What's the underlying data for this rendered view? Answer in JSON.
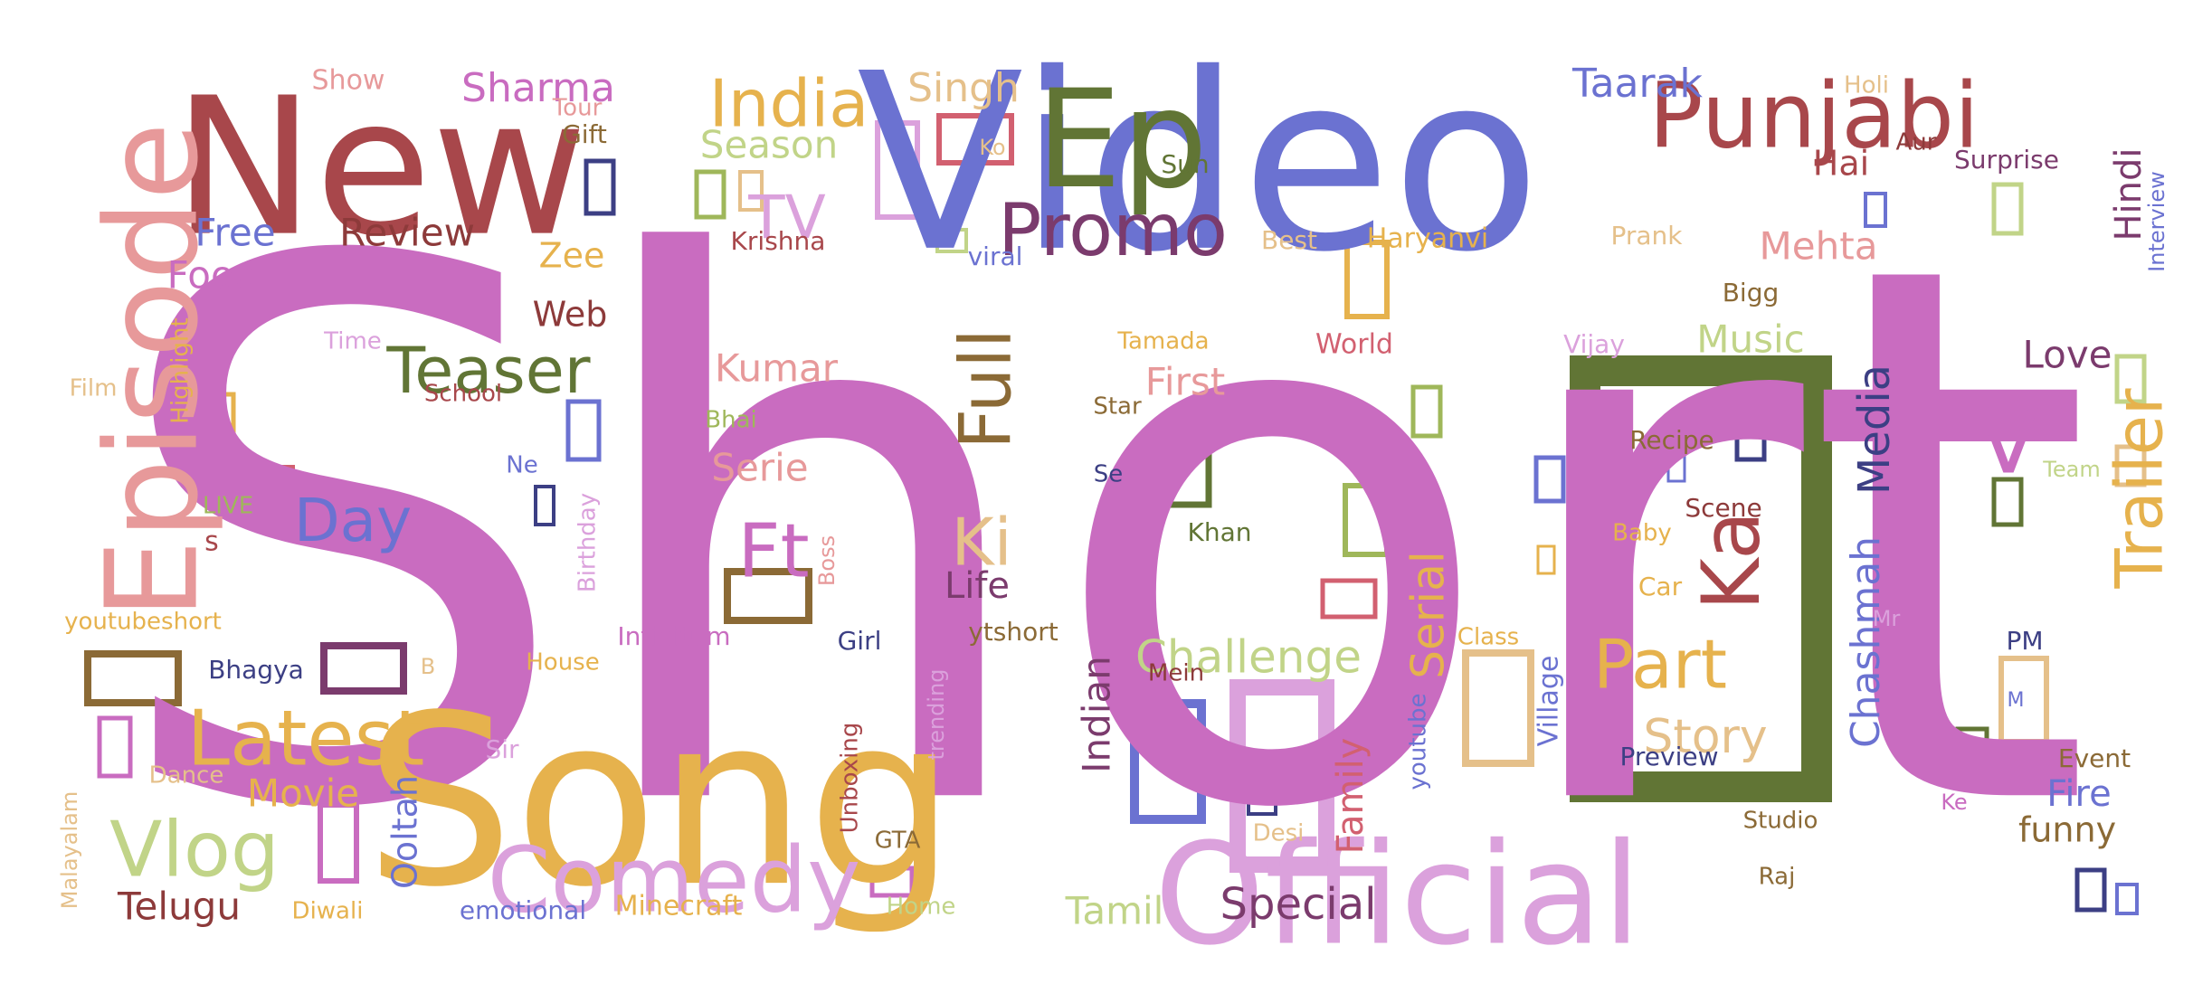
{
  "colors": {
    "orchid": "#c96cc0",
    "steel": "#6b72d1",
    "gold": "#e6b24d",
    "brick": "#a8474b",
    "olive": "#617535",
    "pink": "#e7999a",
    "lilac": "#dba1dc",
    "sage": "#c1d488",
    "plum": "#7b3b6d",
    "brown": "#8b6a36",
    "navy": "#3c3f84",
    "sand": "#e5c08a",
    "rose": "#d26070",
    "green": "#9fb75a",
    "dkred": "#8d3a3a"
  },
  "words": [
    {
      "text": "Short",
      "color": "orchid"
    },
    {
      "text": "Video",
      "color": "steel"
    },
    {
      "text": "Song",
      "color": "gold"
    },
    {
      "text": "New",
      "color": "brick"
    },
    {
      "text": "Official",
      "color": "lilac"
    },
    {
      "text": "Episode",
      "color": "pink"
    },
    {
      "text": "Ep",
      "color": "olive"
    },
    {
      "text": "Punjabi",
      "color": "brick"
    },
    {
      "text": "Comedy",
      "color": "lilac"
    },
    {
      "text": "Promo",
      "color": "plum"
    },
    {
      "text": "Latest",
      "color": "gold"
    },
    {
      "text": "Vlog",
      "color": "sage"
    },
    {
      "text": "India",
      "color": "gold"
    },
    {
      "text": "Teaser",
      "color": "olive"
    },
    {
      "text": "Part",
      "color": "gold"
    },
    {
      "text": "Ka",
      "color": "brick"
    },
    {
      "text": "Trailer",
      "color": "gold"
    },
    {
      "text": "Ft",
      "color": "orchid"
    },
    {
      "text": "Full",
      "color": "brown"
    },
    {
      "text": "Day",
      "color": "steel"
    },
    {
      "text": "V",
      "color": "orchid"
    },
    {
      "text": "Ki",
      "color": "sand"
    },
    {
      "text": "TV",
      "color": "lilac"
    },
    {
      "text": "Story",
      "color": "sand"
    },
    {
      "text": "Challenge",
      "color": "sage"
    },
    {
      "text": "Serial",
      "color": "gold"
    },
    {
      "text": "Media",
      "color": "navy"
    },
    {
      "text": "Special",
      "color": "plum"
    },
    {
      "text": "Chashmah",
      "color": "steel"
    },
    {
      "text": "Sharma",
      "color": "orchid"
    },
    {
      "text": "Singh",
      "color": "sand"
    },
    {
      "text": "Taarak",
      "color": "steel"
    },
    {
      "text": "Season",
      "color": "sage"
    },
    {
      "text": "Review",
      "color": "dkred"
    },
    {
      "text": "Free",
      "color": "steel"
    },
    {
      "text": "Food",
      "color": "orchid"
    },
    {
      "text": "Hindi",
      "color": "plum"
    },
    {
      "text": "Mehta",
      "color": "pink"
    },
    {
      "text": "Hai",
      "color": "brick"
    },
    {
      "text": "Music",
      "color": "sage"
    },
    {
      "text": "Love",
      "color": "plum"
    },
    {
      "text": "Kumar",
      "color": "pink"
    },
    {
      "text": "First",
      "color": "pink"
    },
    {
      "text": "Serie",
      "color": "pink"
    },
    {
      "text": "Life",
      "color": "plum"
    },
    {
      "text": "Movie",
      "color": "gold"
    },
    {
      "text": "Telugu",
      "color": "dkred"
    },
    {
      "text": "Tamil",
      "color": "sage"
    },
    {
      "text": "Indian",
      "color": "plum"
    },
    {
      "text": "Family",
      "color": "rose"
    },
    {
      "text": "Fire",
      "color": "steel"
    },
    {
      "text": "funny",
      "color": "brown"
    },
    {
      "text": "Web",
      "color": "dkred"
    },
    {
      "text": "Zee",
      "color": "gold"
    },
    {
      "text": "Ooltah",
      "color": "steel"
    },
    {
      "text": "Haryanvi",
      "color": "gold"
    },
    {
      "text": "Krishna",
      "color": "brick"
    },
    {
      "text": "viral",
      "color": "steel"
    },
    {
      "text": "Sun",
      "color": "olive"
    },
    {
      "text": "Best",
      "color": "sand"
    },
    {
      "text": "Prank",
      "color": "sand"
    },
    {
      "text": "Surprise",
      "color": "plum"
    },
    {
      "text": "Aur",
      "color": "dkred"
    },
    {
      "text": "Interview",
      "color": "steel"
    },
    {
      "text": "Holi",
      "color": "sand"
    },
    {
      "text": "Show",
      "color": "pink"
    },
    {
      "text": "Tour",
      "color": "pink"
    },
    {
      "text": "Gift",
      "color": "brown"
    },
    {
      "text": "Ko",
      "color": "sand"
    },
    {
      "text": "Bigg",
      "color": "brown"
    },
    {
      "text": "Tamada",
      "color": "gold"
    },
    {
      "text": "World",
      "color": "rose"
    },
    {
      "text": "Vijay",
      "color": "lilac"
    },
    {
      "text": "Recipe",
      "color": "brown"
    },
    {
      "text": "Scene",
      "color": "dkred"
    },
    {
      "text": "Baby",
      "color": "gold"
    },
    {
      "text": "Car",
      "color": "gold"
    },
    {
      "text": "Preview",
      "color": "navy"
    },
    {
      "text": "Village",
      "color": "steel"
    },
    {
      "text": "Class",
      "color": "gold"
    },
    {
      "text": "youtube",
      "color": "steel"
    },
    {
      "text": "Studio",
      "color": "brown"
    },
    {
      "text": "Raj",
      "color": "brown"
    },
    {
      "text": "Event",
      "color": "brown"
    },
    {
      "text": "Ke",
      "color": "orchid"
    },
    {
      "text": "PM",
      "color": "navy"
    },
    {
      "text": "Mr",
      "color": "lilac"
    },
    {
      "text": "Team",
      "color": "sage"
    },
    {
      "text": "Khan",
      "color": "olive"
    },
    {
      "text": "Star",
      "color": "brown"
    },
    {
      "text": "Se",
      "color": "navy"
    },
    {
      "text": "Bhai",
      "color": "green"
    },
    {
      "text": "Time",
      "color": "lilac"
    },
    {
      "text": "School",
      "color": "brick"
    },
    {
      "text": "Highlight",
      "color": "gold"
    },
    {
      "text": "Film",
      "color": "sand"
    },
    {
      "text": "Ne",
      "color": "steel"
    },
    {
      "text": "LIVE",
      "color": "green"
    },
    {
      "text": "s",
      "color": "brick"
    },
    {
      "text": "Birthday",
      "color": "lilac"
    },
    {
      "text": "youtubeshort",
      "color": "gold"
    },
    {
      "text": "Infinitum",
      "color": "orchid"
    },
    {
      "text": "Girl",
      "color": "navy"
    },
    {
      "text": "ytshort",
      "color": "brown"
    },
    {
      "text": "Boss",
      "color": "pink"
    },
    {
      "text": "Bhagya",
      "color": "navy"
    },
    {
      "text": "B",
      "color": "sand"
    },
    {
      "text": "House",
      "color": "gold"
    },
    {
      "text": "Mein",
      "color": "dkred"
    },
    {
      "text": "trending",
      "color": "lilac"
    },
    {
      "text": "Unboxing",
      "color": "brick"
    },
    {
      "text": "Sir",
      "color": "lilac"
    },
    {
      "text": "Dance",
      "color": "sand"
    },
    {
      "text": "Malayalam",
      "color": "sand"
    },
    {
      "text": "GTA",
      "color": "brown"
    },
    {
      "text": "Desi",
      "color": "sand"
    },
    {
      "text": "Diwali",
      "color": "gold"
    },
    {
      "text": "emotional",
      "color": "steel"
    },
    {
      "text": "Minecraft",
      "color": "gold"
    },
    {
      "text": "Home",
      "color": "sage"
    },
    {
      "text": "M",
      "color": "steel"
    }
  ]
}
